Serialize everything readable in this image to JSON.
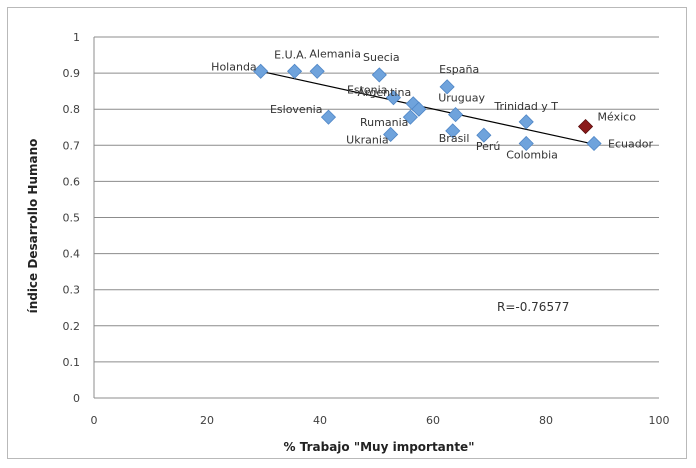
{
  "chart_data": {
    "type": "scatter",
    "title": "",
    "xlabel": "% Trabajo \"Muy importante\"",
    "ylabel": "índice Desarrollo Humano",
    "xlim": [
      0,
      100
    ],
    "ylim": [
      0,
      1
    ],
    "xticks": [
      "0",
      "20",
      "40",
      "60",
      "80",
      "100"
    ],
    "yticks": [
      "0",
      "0.1",
      "0.2",
      "0.3",
      "0.4",
      "0.5",
      "0.6",
      "0.7",
      "0.8",
      "0.9",
      "1"
    ],
    "grid": true,
    "legend": "none",
    "series": [
      {
        "color": "#6fa3dc",
        "points": [
          {
            "label": "Holanda",
            "x": 29.5,
            "y": 0.905
          },
          {
            "label": "E.U.A.",
            "x": 35.5,
            "y": 0.905
          },
          {
            "label": "Alemania",
            "x": 39.5,
            "y": 0.905
          },
          {
            "label": "Suecia",
            "x": 50.5,
            "y": 0.895
          },
          {
            "label": "España",
            "x": 62.5,
            "y": 0.862
          },
          {
            "label": "Eslovenia",
            "x": 41.5,
            "y": 0.778
          },
          {
            "label": "Estonia",
            "x": 53,
            "y": 0.832
          },
          {
            "label": "Argentina",
            "x": 56.5,
            "y": 0.815
          },
          {
            "label": "",
            "x": 57.5,
            "y": 0.8
          },
          {
            "label": "Rumania",
            "x": 56,
            "y": 0.778
          },
          {
            "label": "Uruguay",
            "x": 64,
            "y": 0.785
          },
          {
            "label": "Ukrania",
            "x": 52.5,
            "y": 0.73
          },
          {
            "label": "Brasil",
            "x": 63.5,
            "y": 0.74
          },
          {
            "label": "Perú",
            "x": 69,
            "y": 0.728
          },
          {
            "label": "Trinidad y T",
            "x": 76.5,
            "y": 0.765
          },
          {
            "label": "Colombia",
            "x": 76.5,
            "y": 0.705
          },
          {
            "label": "Ecuador",
            "x": 88.5,
            "y": 0.705
          }
        ]
      },
      {
        "color": "#8b1a1a",
        "points": [
          {
            "label": "México",
            "x": 87,
            "y": 0.752
          }
        ]
      }
    ],
    "trendline": {
      "x": [
        29.5,
        88.5
      ],
      "y": [
        0.905,
        0.703
      ]
    },
    "annotation": "R=-0.76577",
    "colors": {
      "gridline": "#8c8c8c",
      "trendline": "#000000"
    }
  }
}
